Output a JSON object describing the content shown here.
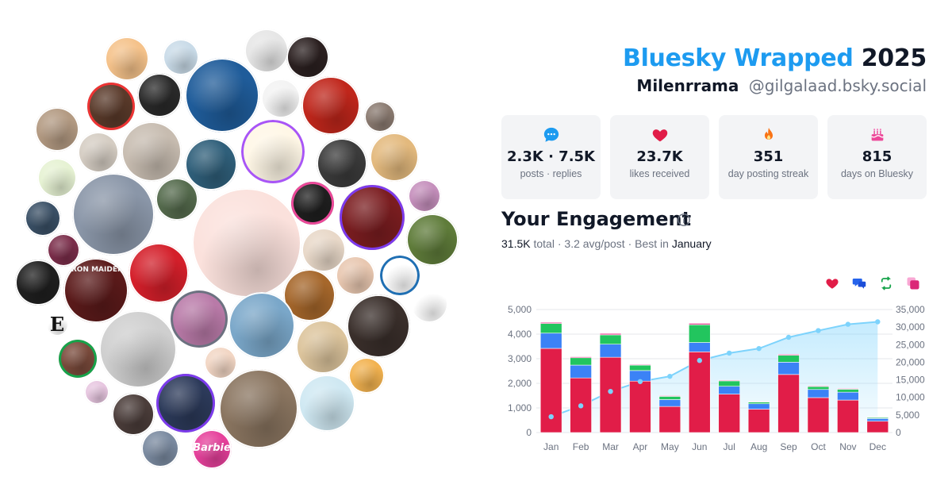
{
  "header": {
    "brand": "Bluesky Wrapped",
    "year": "2025",
    "display_name": "Milenrrama",
    "handle": "@gilgalaad.bsky.social"
  },
  "stats": [
    {
      "icon": "speech-bubble-icon",
      "value": "2.3K · 7.5K",
      "caption": "posts · replies"
    },
    {
      "icon": "heart-icon",
      "value": "23.7K",
      "caption": "likes received"
    },
    {
      "icon": "flame-icon",
      "value": "351",
      "caption": "day posting streak"
    },
    {
      "icon": "cake-icon",
      "value": "815",
      "caption": "days on Bluesky"
    }
  ],
  "engagement": {
    "title": "Your Engagement",
    "total": "31.5K",
    "total_label": "total",
    "avg": "3.2 avg/post",
    "best_label": "Best in",
    "best_month": "January"
  },
  "legend_icons": [
    "heart-icon",
    "reply-icon",
    "repost-icon",
    "quote-icon"
  ],
  "colors": {
    "brand": "#1d9bf0",
    "likes": "#e11d48",
    "replies": "#3b82f6",
    "reposts": "#22c55e",
    "quotes": "#ec4899",
    "cumulative": "#7dd3fc"
  },
  "avatar_labels": {
    "iron_maiden": "IRON MAIDEN",
    "barbie": "Barbie",
    "e_logo": "E"
  },
  "chart_data": {
    "type": "bar",
    "categories": [
      "Jan",
      "Feb",
      "Mar",
      "Apr",
      "May",
      "Jun",
      "Jul",
      "Aug",
      "Sep",
      "Oct",
      "Nov",
      "Dec"
    ],
    "series": [
      {
        "values": [
          3420,
          2220,
          3060,
          2090,
          1060,
          3280,
          1560,
          950,
          2360,
          1420,
          1320,
          460
        ]
      },
      {
        "values": [
          620,
          520,
          530,
          430,
          280,
          380,
          320,
          220,
          500,
          330,
          320,
          110
        ]
      },
      {
        "values": [
          390,
          300,
          380,
          220,
          130,
          720,
          220,
          70,
          280,
          120,
          120,
          40
        ]
      },
      {
        "values": [
          50,
          40,
          60,
          30,
          30,
          60,
          30,
          20,
          40,
          30,
          30,
          20
        ]
      }
    ],
    "cumulative": [
      4500,
      7600,
      11700,
      14500,
      16000,
      20500,
      22600,
      23900,
      27100,
      29000,
      30800,
      31500
    ],
    "ylim": [
      0,
      5000
    ],
    "y_ticks": [
      "0",
      "1,000",
      "2,000",
      "3,000",
      "4,000",
      "5,000"
    ],
    "y2lim": [
      0,
      35000
    ],
    "y2_ticks": [
      "0",
      "5,000",
      "10,000",
      "15,000",
      "20,000",
      "25,000",
      "30,000",
      "35,000"
    ],
    "grid": true
  }
}
